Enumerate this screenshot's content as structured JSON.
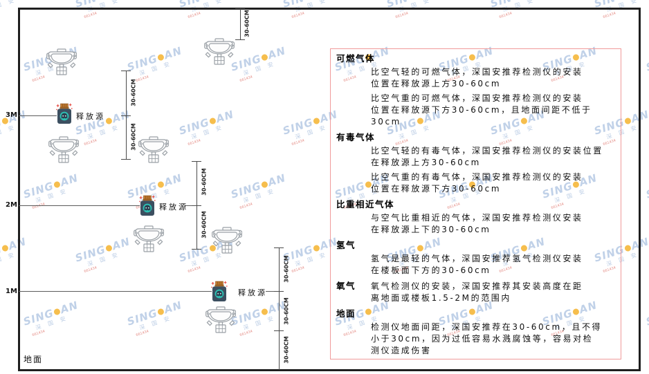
{
  "watermark": {
    "brand_left": "SING",
    "brand_right": "AN",
    "cn": "深 国 安",
    "code": "661434"
  },
  "diagram": {
    "dim_label": "30-60CM",
    "source_label": "释放源",
    "ground_label": "地面",
    "heights": {
      "h3": "3M",
      "h2": "2M",
      "h1": "1M"
    }
  },
  "panel": {
    "sections": [
      {
        "heading": "可燃气体",
        "p0": "比空气轻的可燃气体，深国安推荐检测仪的安装\n位置在释放源上方30-60cm",
        "p1": "比空气重的可燃气体，深国安推荐检测仪的安装\n位置在释放源下方30-60cm，且地面间距不低于\n30cm"
      },
      {
        "heading": "有毒气体",
        "p0": "比空气轻的有毒气体，深国安推荐检测仪的安装位置\n在释放源上方30-60cm",
        "p1": "比空气重的有毒气体，深国安推荐检测仪的安装\n位置在释放源下方30-60cm"
      },
      {
        "heading": "比重相近气体",
        "p0": "与空气比重相近的气体，深国安推荐检测仪安装\n在释放源上下的30-60cm"
      },
      {
        "heading": "氢气",
        "p0": "氢气是最轻的气体，深国安推荐氢气检测仪安装\n在楼板面下方的30-60cm"
      },
      {
        "heading": "氧气",
        "p0": "氧气检测仪的安装，深国安推荐其安装高度在距\n离地面或楼板1.5-2M的范围内"
      },
      {
        "heading": "地面",
        "p0": "检测仪地面间距，深国安推荐在30-60cm，且不得\n小于30cm，因为过低容易水溅腐蚀等，容易对检\n测仪造成伤害"
      }
    ]
  },
  "colors": {
    "panel_border": "#f09a9a",
    "detector_outline": "#9aa0a6",
    "source_body": "#3c4f60",
    "source_cap": "#c07a30",
    "source_circle": "#2ebfb3",
    "spark_red": "#e8574f",
    "watermark_blue": "#b6c9e4",
    "watermark_orange": "#f5b32e",
    "watermark_red": "#e0776f"
  }
}
